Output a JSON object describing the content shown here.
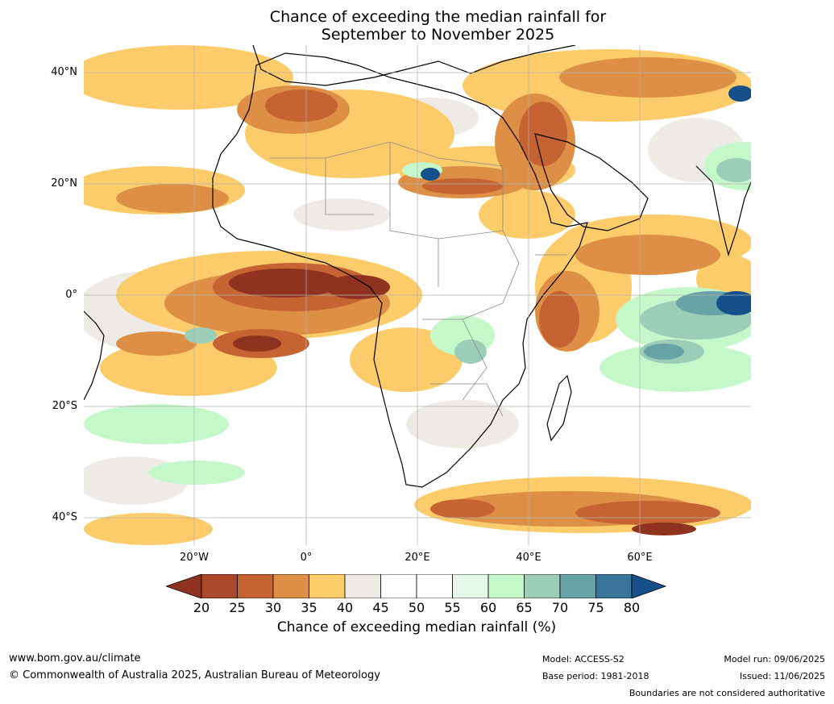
{
  "title": {
    "line1": "Chance of exceeding the median rainfall for",
    "line2": "September to November 2025"
  },
  "map": {
    "lat_labels": [
      "40°N",
      "20°N",
      "0°",
      "20°S",
      "40°S"
    ],
    "lon_labels": [
      "20°W",
      "0°",
      "20°E",
      "40°E",
      "60°E"
    ]
  },
  "colorbar": {
    "ticks": [
      "20",
      "25",
      "30",
      "35",
      "40",
      "45",
      "50",
      "55",
      "60",
      "65",
      "70",
      "75",
      "80"
    ],
    "colors": [
      "#8f3320",
      "#a9482a",
      "#c56332",
      "#de8f46",
      "#fdcc6a",
      "#eeebe7",
      "#ffffff",
      "#ffffff",
      "#e6f6e8",
      "#c5f8c8",
      "#9bcdb8",
      "#6aa3a7",
      "#3a7498",
      "#15508a"
    ],
    "label": "Chance of exceeding median rainfall (%)"
  },
  "footer": {
    "website": "www.bom.gov.au/climate",
    "copyright": "© Commonwealth of Australia 2025, Australian Bureau of Meteorology",
    "model": "Model: ACCESS-S2",
    "base_period": "Base period: 1981-2018",
    "model_run": "Model run: 09/06/2025",
    "issued": "Issued: 11/06/2025",
    "disclaimer": "Boundaries are not considered authoritative"
  }
}
